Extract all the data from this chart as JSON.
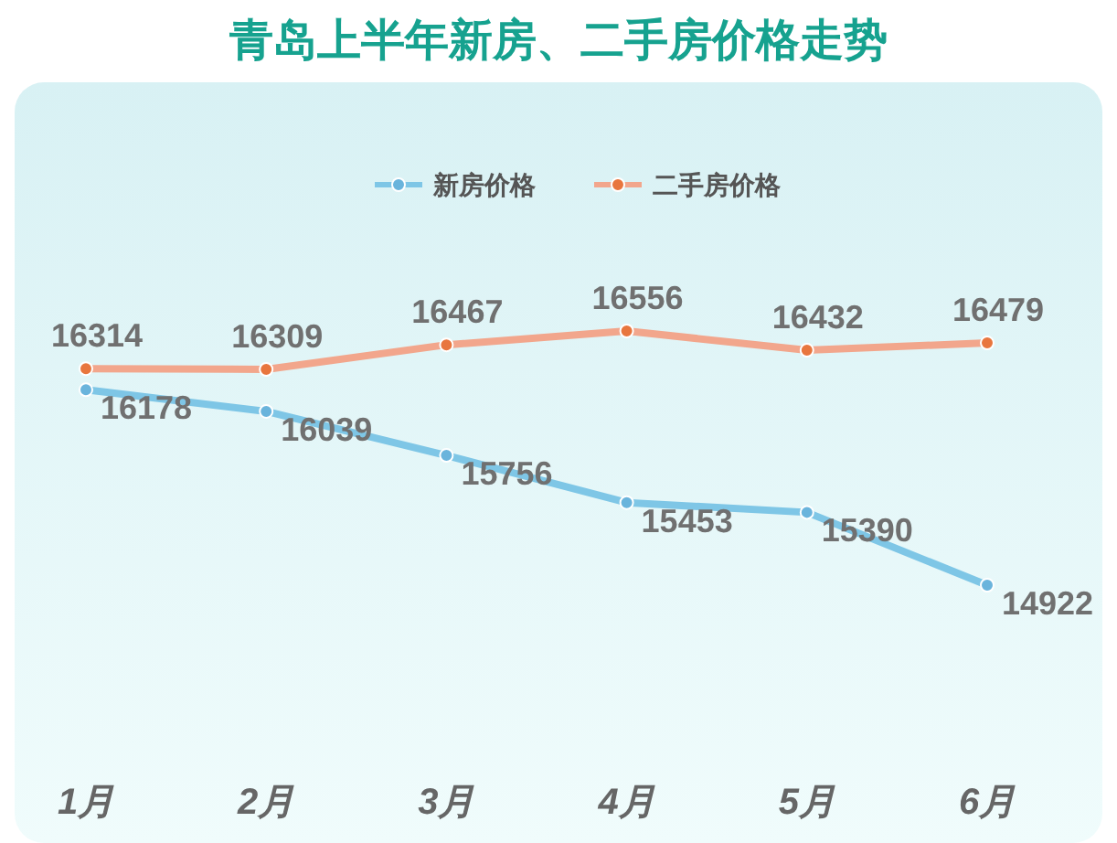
{
  "chart_data": {
    "type": "line",
    "title": "青岛上半年新房、二手房价格走势",
    "categories": [
      "1月",
      "2月",
      "3月",
      "4月",
      "5月",
      "6月"
    ],
    "series": [
      {
        "name": "新房价格",
        "color": "#7ec6e6",
        "values": [
          16178,
          16039,
          15756,
          15453,
          15390,
          14922
        ]
      },
      {
        "name": "二手房价格",
        "color": "#f2a68c",
        "values": [
          16314,
          16309,
          16467,
          16556,
          16432,
          16479
        ]
      }
    ],
    "marker": "circle",
    "data_labels": true,
    "legend": "top"
  }
}
